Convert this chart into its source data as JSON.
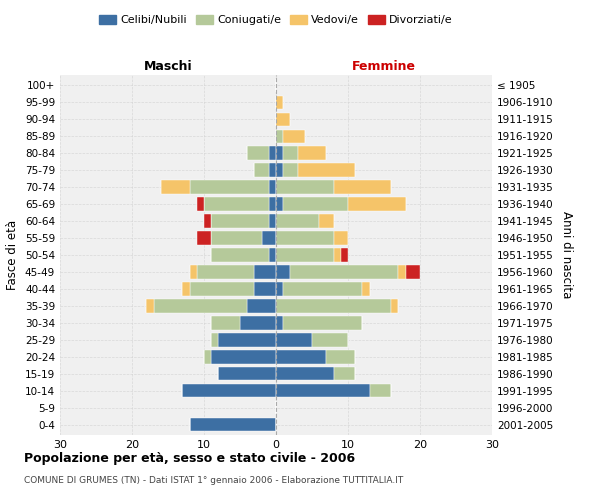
{
  "age_groups": [
    "0-4",
    "5-9",
    "10-14",
    "15-19",
    "20-24",
    "25-29",
    "30-34",
    "35-39",
    "40-44",
    "45-49",
    "50-54",
    "55-59",
    "60-64",
    "65-69",
    "70-74",
    "75-79",
    "80-84",
    "85-89",
    "90-94",
    "95-99",
    "100+"
  ],
  "birth_years": [
    "2001-2005",
    "1996-2000",
    "1991-1995",
    "1986-1990",
    "1981-1985",
    "1976-1980",
    "1971-1975",
    "1966-1970",
    "1961-1965",
    "1956-1960",
    "1951-1955",
    "1946-1950",
    "1941-1945",
    "1936-1940",
    "1931-1935",
    "1926-1930",
    "1921-1925",
    "1916-1920",
    "1911-1915",
    "1906-1910",
    "≤ 1905"
  ],
  "maschi": {
    "celibi": [
      12,
      0,
      13,
      8,
      9,
      8,
      5,
      4,
      3,
      3,
      1,
      2,
      1,
      1,
      1,
      1,
      1,
      0,
      0,
      0,
      0
    ],
    "coniugati": [
      0,
      0,
      0,
      0,
      1,
      1,
      4,
      13,
      9,
      8,
      8,
      7,
      8,
      9,
      11,
      2,
      3,
      0,
      0,
      0,
      0
    ],
    "vedovi": [
      0,
      0,
      0,
      0,
      0,
      0,
      0,
      1,
      1,
      1,
      0,
      0,
      0,
      0,
      4,
      0,
      0,
      0,
      0,
      0,
      0
    ],
    "divorziati": [
      0,
      0,
      0,
      0,
      0,
      0,
      0,
      0,
      0,
      0,
      0,
      2,
      1,
      1,
      0,
      0,
      0,
      0,
      0,
      0,
      0
    ]
  },
  "femmine": {
    "nubili": [
      0,
      0,
      13,
      8,
      7,
      5,
      1,
      0,
      1,
      2,
      0,
      0,
      0,
      1,
      0,
      1,
      1,
      0,
      0,
      0,
      0
    ],
    "coniugate": [
      0,
      0,
      3,
      3,
      4,
      5,
      11,
      16,
      11,
      15,
      8,
      8,
      6,
      9,
      8,
      2,
      2,
      1,
      0,
      0,
      0
    ],
    "vedove": [
      0,
      0,
      0,
      0,
      0,
      0,
      0,
      1,
      1,
      1,
      1,
      2,
      2,
      8,
      8,
      8,
      4,
      3,
      2,
      1,
      0
    ],
    "divorziate": [
      0,
      0,
      0,
      0,
      0,
      0,
      0,
      0,
      0,
      2,
      1,
      0,
      0,
      0,
      0,
      0,
      0,
      0,
      0,
      0,
      0
    ]
  },
  "colors": {
    "celibi": "#3d6fa3",
    "coniugati": "#b5c99a",
    "vedovi": "#f5c469",
    "divorziati": "#cc2222"
  },
  "title": "Popolazione per età, sesso e stato civile - 2006",
  "subtitle": "COMUNE DI GRUMES (TN) - Dati ISTAT 1° gennaio 2006 - Elaborazione TUTTITALIA.IT",
  "xlim": 30,
  "legend_labels": [
    "Celibi/Nubili",
    "Coniugati/e",
    "Vedovi/e",
    "Divorziati/e"
  ],
  "ylabel_left": "Fasce di età",
  "ylabel_right": "Anni di nascita",
  "header_maschi": "Maschi",
  "header_femmine": "Femmine"
}
